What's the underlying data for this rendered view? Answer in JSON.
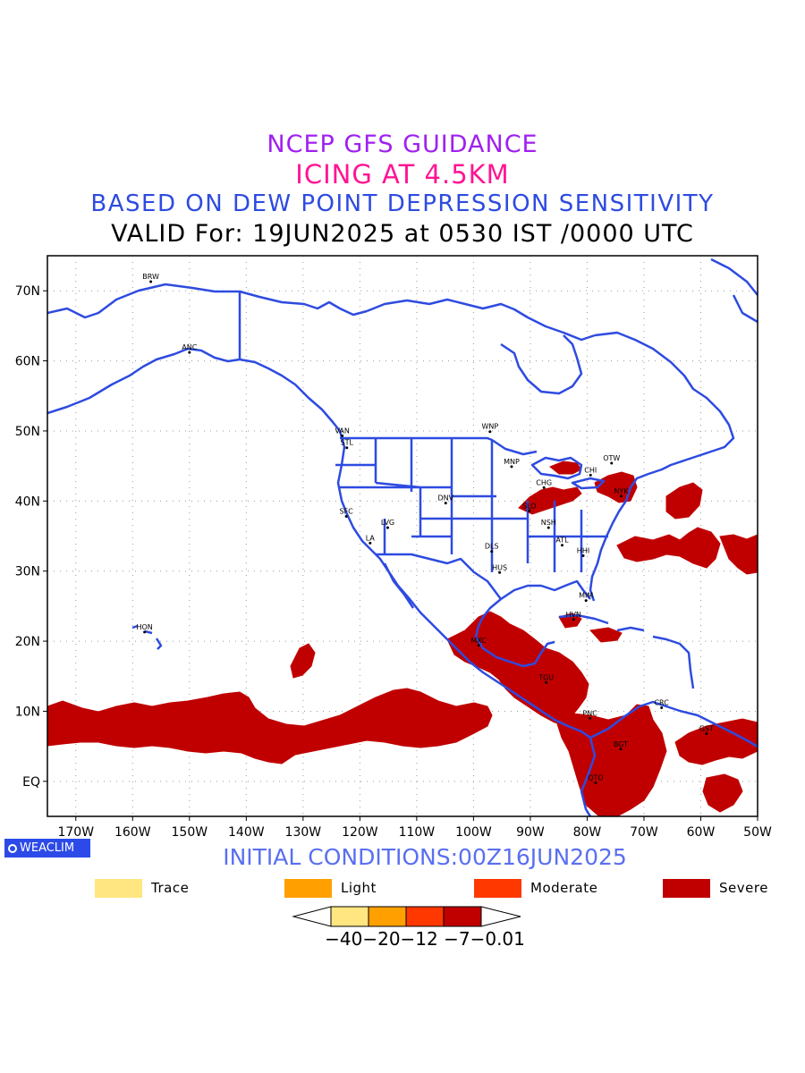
{
  "titles": {
    "line1": "NCEP GFS GUIDANCE",
    "line2": "ICING AT 4.5KM",
    "line3": "BASED ON DEW POINT DEPRESSION SENSITIVITY",
    "line4": "VALID For: 19JUN2025 at 0530 IST /0000 UTC"
  },
  "colors": {
    "title1": "#a020f0",
    "title2": "#ff1493",
    "title3": "#2e4be0",
    "coast": "#2e4be0",
    "severe": "#c00000"
  },
  "axes": {
    "lon_labels": [
      "170W",
      "160W",
      "150W",
      "140W",
      "130W",
      "120W",
      "110W",
      "100W",
      "90W",
      "80W",
      "70W",
      "60W",
      "50W"
    ],
    "lat_labels": [
      "70N",
      "60N",
      "50N",
      "40N",
      "30N",
      "20N",
      "10N",
      "EQ"
    ],
    "lon_range": [
      -175,
      -50
    ],
    "lat_range": [
      -5,
      75
    ],
    "grid": "dotted"
  },
  "stations": [
    {
      "code": "ANC",
      "lon": -150.0,
      "lat": 61.2
    },
    {
      "code": "BRW",
      "lon": -156.8,
      "lat": 71.3
    },
    {
      "code": "VAN",
      "lon": -123.1,
      "lat": 49.3
    },
    {
      "code": "STL",
      "lon": -122.3,
      "lat": 47.6
    },
    {
      "code": "WNP",
      "lon": -97.1,
      "lat": 49.9
    },
    {
      "code": "MNP",
      "lon": -93.3,
      "lat": 44.9
    },
    {
      "code": "CHG",
      "lon": -87.6,
      "lat": 41.9
    },
    {
      "code": "OTW",
      "lon": -75.7,
      "lat": 45.4
    },
    {
      "code": "CHI",
      "lon": -79.4,
      "lat": 43.7
    },
    {
      "code": "NYK",
      "lon": -74.0,
      "lat": 40.7
    },
    {
      "code": "SLO",
      "lon": -90.2,
      "lat": 38.6
    },
    {
      "code": "SFC",
      "lon": -122.4,
      "lat": 37.8
    },
    {
      "code": "LVG",
      "lon": -115.1,
      "lat": 36.2
    },
    {
      "code": "DNV",
      "lon": -104.9,
      "lat": 39.7
    },
    {
      "code": "LA",
      "lon": -118.2,
      "lat": 34.0
    },
    {
      "code": "NSH",
      "lon": -86.8,
      "lat": 36.2
    },
    {
      "code": "ATL",
      "lon": -84.4,
      "lat": 33.7
    },
    {
      "code": "DLS",
      "lon": -96.8,
      "lat": 32.8
    },
    {
      "code": "HUS",
      "lon": -95.4,
      "lat": 29.8
    },
    {
      "code": "HHI",
      "lon": -80.7,
      "lat": 32.2
    },
    {
      "code": "MIM",
      "lon": -80.2,
      "lat": 25.8
    },
    {
      "code": "HVN",
      "lon": -82.4,
      "lat": 23.1
    },
    {
      "code": "HON",
      "lon": -157.9,
      "lat": 21.3
    },
    {
      "code": "MXC",
      "lon": -99.1,
      "lat": 19.4
    },
    {
      "code": "TGU",
      "lon": -87.2,
      "lat": 14.1
    },
    {
      "code": "CRC",
      "lon": -66.9,
      "lat": 10.5
    },
    {
      "code": "PNC",
      "lon": -79.5,
      "lat": 9.0
    },
    {
      "code": "GST",
      "lon": -59.0,
      "lat": 6.8
    },
    {
      "code": "BGT",
      "lon": -74.1,
      "lat": 4.6
    },
    {
      "code": "QTO",
      "lon": -78.5,
      "lat": -0.2
    }
  ],
  "footer": {
    "brand": "WEACLIM",
    "initial_conditions": "INITIAL CONDITIONS:00Z16JUN2025"
  },
  "legend": [
    {
      "label": "Trace",
      "color": "#ffe680"
    },
    {
      "label": "Light",
      "color": "#ffa000"
    },
    {
      "label": "Moderate",
      "color": "#ff3800"
    },
    {
      "label": "Severe",
      "color": "#c00000"
    }
  ],
  "colorbar": {
    "colors": [
      "#ffe680",
      "#ffa000",
      "#ff3800",
      "#c00000"
    ],
    "labels": "−40−20−12 −7−0.01"
  }
}
